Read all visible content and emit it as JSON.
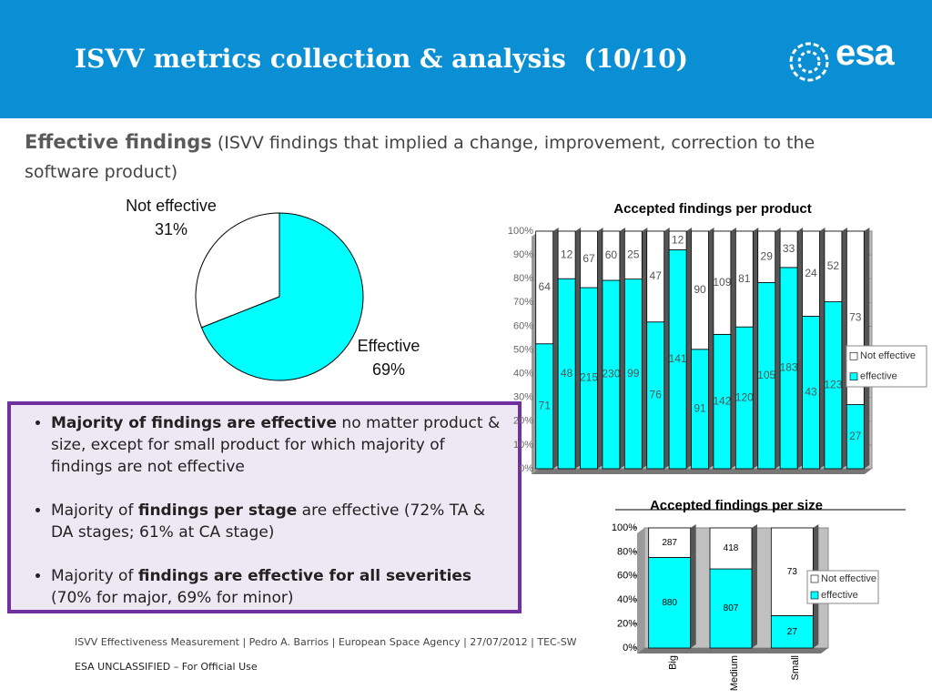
{
  "header": {
    "title": "ISVV metrics collection & analysis  (10/10)",
    "logo": "esa"
  },
  "intro": {
    "bold": "Effective findings",
    "text": "(ISVV findings that implied a change, improvement, correction to the software product)"
  },
  "bullets": [
    [
      {
        "text": "Majority of findings are effective",
        "bold": true
      },
      {
        "text": " no matter product & size, except for small product for which majority of findings are not effective",
        "bold": false
      }
    ],
    [
      {
        "text": "Majority of ",
        "bold": false
      },
      {
        "text": "findings per stage",
        "bold": true
      },
      {
        "text": " are effective (72% TA & DA stages;  61% at CA stage)",
        "bold": false
      }
    ],
    [
      {
        "text": "Majority of ",
        "bold": false
      },
      {
        "text": "findings are effective for all severities",
        "bold": true
      },
      {
        "text": " (70% for major, 69% for minor)",
        "bold": false
      }
    ]
  ],
  "footer": {
    "line": "ISVV Effectiveness Measurement | Pedro A. Barrios | European Space Agency | 27/07/2012 | TEC-SW",
    "classification": "ESA UNCLASSIFIED – For Official Use"
  },
  "chart_data": [
    {
      "type": "pie",
      "categories": [
        "Not effective",
        "Effective"
      ],
      "values": [
        31,
        69
      ],
      "value_labels": [
        "31%",
        "69%"
      ],
      "colors": [
        "#ffffff",
        "#00ffff"
      ]
    },
    {
      "type": "stacked-percent-bar",
      "title": "Accepted findings per product",
      "categories": [
        null,
        null,
        null,
        null,
        null,
        null,
        null,
        null,
        null,
        null,
        null,
        null,
        null,
        null,
        null
      ],
      "series": [
        {
          "name": "effective",
          "color": "#00ffff",
          "values": [
            71,
            48,
            215,
            230,
            99,
            76,
            141,
            91,
            142,
            120,
            105,
            183,
            43,
            123,
            27
          ]
        },
        {
          "name": "Not effective",
          "color": "#ffffff",
          "values": [
            64,
            12,
            67,
            60,
            25,
            47,
            12,
            90,
            109,
            81,
            29,
            33,
            24,
            52,
            73
          ]
        }
      ],
      "ylim": [
        0,
        100
      ],
      "yticks": [
        {
          "value": 0,
          "label": "0%"
        },
        {
          "value": 10,
          "label": "10%"
        },
        {
          "value": 20,
          "label": "20%"
        },
        {
          "value": 30,
          "label": "30%"
        },
        {
          "value": 40,
          "label": "40%"
        },
        {
          "value": 50,
          "label": "50%"
        },
        {
          "value": 60,
          "label": "60%"
        },
        {
          "value": 70,
          "label": "70%"
        },
        {
          "value": 80,
          "label": "80%"
        },
        {
          "value": 90,
          "label": "90%"
        },
        {
          "value": 100,
          "label": "100%"
        }
      ],
      "grid": true,
      "legend": "right"
    },
    {
      "type": "stacked-percent-bar",
      "title": "Accepted findings per size",
      "categories": [
        "Big",
        "Medium",
        "Small"
      ],
      "series": [
        {
          "name": "effective",
          "color": "#00ffff",
          "values": [
            880,
            807,
            27
          ]
        },
        {
          "name": "Not effective",
          "color": "#ffffff",
          "values": [
            287,
            418,
            73
          ]
        }
      ],
      "ylim": [
        0,
        100
      ],
      "yticks": [
        {
          "value": 0,
          "label": "0%"
        },
        {
          "value": 20,
          "label": "20%"
        },
        {
          "value": 40,
          "label": "40%"
        },
        {
          "value": 60,
          "label": "60%"
        },
        {
          "value": 80,
          "label": "80%"
        },
        {
          "value": 100,
          "label": "100%"
        }
      ],
      "grid": false,
      "legend": "right"
    }
  ]
}
